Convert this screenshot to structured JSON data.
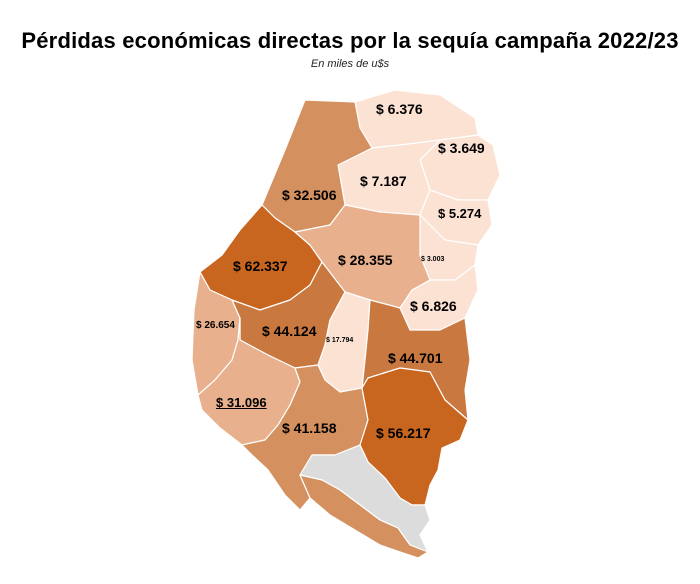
{
  "title": "Pérdidas económicas directas por la sequía campaña 2022/23",
  "subtitle": "En miles de u$s",
  "colors": {
    "very_light": "#fbe2d3",
    "light": "#e8b08d",
    "medium": "#d4905e",
    "darker": "#c97840",
    "darkest": "#c8651f",
    "no_data": "#dcdcdc"
  },
  "regions": [
    {
      "label": "$ 6.376",
      "value_thousand_usd": 6376
    },
    {
      "label": "$ 3.649",
      "value_thousand_usd": 3649
    },
    {
      "label": "$ 32.506",
      "value_thousand_usd": 32506
    },
    {
      "label": "$ 7.187",
      "value_thousand_usd": 7187
    },
    {
      "label": "$ 5.274",
      "value_thousand_usd": 5274
    },
    {
      "label": "$ 62.337",
      "value_thousand_usd": 62337
    },
    {
      "label": "$ 28.355",
      "value_thousand_usd": 28355
    },
    {
      "label": "$ 3.003",
      "value_thousand_usd": 3003
    },
    {
      "label": "$ 6.826",
      "value_thousand_usd": 6826
    },
    {
      "label": "$ 26.654",
      "value_thousand_usd": 26654
    },
    {
      "label": "$ 44.124",
      "value_thousand_usd": 44124
    },
    {
      "label": "$ 17.794",
      "value_thousand_usd": 17794
    },
    {
      "label": "$ 44.701",
      "value_thousand_usd": 44701
    },
    {
      "label": "$ 31.096",
      "value_thousand_usd": 31096
    },
    {
      "label": "$ 41.158",
      "value_thousand_usd": 41158
    },
    {
      "label": "$ 56.217",
      "value_thousand_usd": 56217
    }
  ]
}
